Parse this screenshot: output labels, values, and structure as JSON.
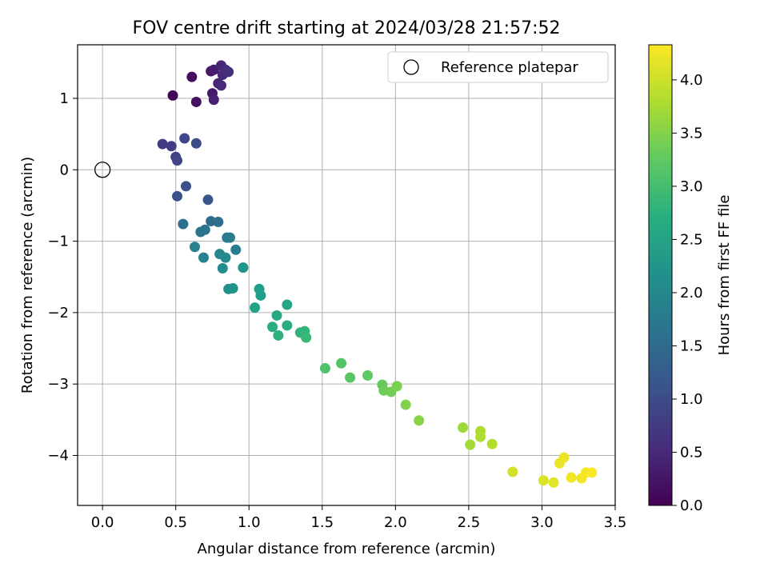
{
  "chart_data": {
    "type": "scatter",
    "title": "FOV centre drift starting at 2024/03/28 21:57:52",
    "xlabel": "Angular distance from reference (arcmin)",
    "ylabel": "Rotation from reference (arcmin)",
    "xlim": [
      -0.17,
      3.5
    ],
    "ylim": [
      -4.7,
      1.75
    ],
    "xticks": [
      0.0,
      0.5,
      1.0,
      1.5,
      2.0,
      2.5,
      3.0,
      3.5
    ],
    "xtick_labels": [
      "0.0",
      "0.5",
      "1.0",
      "1.5",
      "2.0",
      "2.5",
      "3.0",
      "3.5"
    ],
    "yticks": [
      -4,
      -3,
      -2,
      -1,
      0,
      1
    ],
    "ytick_labels": [
      "−4",
      "−3",
      "−2",
      "−1",
      "0",
      "1"
    ],
    "grid": true,
    "legend": {
      "placement": "top-right",
      "entries": [
        "Reference platepar"
      ]
    },
    "reference_point": {
      "x": 0.0,
      "y": 0.0
    },
    "colorbar": {
      "label": "Hours from first FF file",
      "colormap": "viridis",
      "range": [
        0.0,
        4.33
      ],
      "ticks": [
        0.0,
        0.5,
        1.0,
        1.5,
        2.0,
        2.5,
        3.0,
        3.5,
        4.0
      ],
      "tick_labels": [
        "0.0",
        "0.5",
        "1.0",
        "1.5",
        "2.0",
        "2.5",
        "3.0",
        "3.5",
        "4.0"
      ]
    },
    "series": [
      {
        "x": [
          0.48,
          0.61,
          0.64,
          0.74,
          0.75,
          0.76,
          0.76,
          0.79,
          0.81,
          0.81,
          0.82,
          0.84,
          0.86,
          0.41,
          0.47,
          0.5,
          0.51,
          0.56,
          0.64,
          0.57,
          0.51,
          0.72,
          0.74,
          0.79,
          0.55,
          0.67,
          0.7,
          0.85,
          0.87,
          0.91,
          0.63,
          0.69,
          0.8,
          0.84,
          0.82,
          0.86,
          0.89,
          0.96,
          1.07,
          1.08,
          1.04,
          1.26,
          1.19,
          1.16,
          1.26,
          1.2,
          1.35,
          1.38,
          1.39,
          1.52,
          1.63,
          1.69,
          1.81,
          1.91,
          1.92,
          1.97,
          2.01,
          2.07,
          2.16,
          2.46,
          2.51,
          2.58,
          2.58,
          2.66,
          2.8,
          3.01,
          3.08,
          3.12,
          3.15,
          3.2,
          3.27,
          3.3,
          3.34
        ],
        "y": [
          1.04,
          1.3,
          0.95,
          1.38,
          1.07,
          1.4,
          0.98,
          1.21,
          1.46,
          1.18,
          1.33,
          1.4,
          1.37,
          0.36,
          0.33,
          0.18,
          0.13,
          0.44,
          0.37,
          -0.23,
          -0.37,
          -0.42,
          -0.72,
          -0.73,
          -0.76,
          -0.87,
          -0.84,
          -0.95,
          -0.95,
          -1.12,
          -1.08,
          -1.23,
          -1.18,
          -1.23,
          -1.38,
          -1.67,
          -1.66,
          -1.37,
          -1.67,
          -1.76,
          -1.93,
          -1.89,
          -2.04,
          -2.2,
          -2.18,
          -2.32,
          -2.28,
          -2.26,
          -2.35,
          -2.78,
          -2.71,
          -2.91,
          -2.88,
          -3.01,
          -3.09,
          -3.11,
          -3.03,
          -3.29,
          -3.51,
          -3.61,
          -3.85,
          -3.66,
          -3.74,
          -3.84,
          -4.23,
          -4.35,
          -4.38,
          -4.11,
          -4.03,
          -4.31,
          -4.32,
          -4.24,
          -4.24
        ],
        "hours": [
          0.05,
          0.12,
          0.18,
          0.25,
          0.3,
          0.35,
          0.38,
          0.42,
          0.45,
          0.48,
          0.52,
          0.55,
          0.58,
          0.75,
          0.8,
          0.85,
          0.9,
          0.95,
          1.0,
          1.05,
          1.1,
          1.15,
          1.5,
          1.55,
          1.6,
          1.65,
          1.7,
          1.75,
          1.8,
          1.85,
          1.9,
          1.95,
          2.0,
          2.05,
          2.1,
          2.15,
          2.2,
          2.25,
          2.4,
          2.45,
          2.5,
          2.55,
          2.6,
          2.65,
          2.7,
          2.75,
          2.8,
          2.85,
          2.9,
          3.1,
          3.15,
          3.2,
          3.25,
          3.3,
          3.35,
          3.4,
          3.45,
          3.5,
          3.55,
          3.7,
          3.75,
          3.8,
          3.82,
          3.85,
          4.05,
          4.1,
          4.15,
          4.2,
          4.22,
          4.25,
          4.27,
          4.29,
          4.31
        ]
      }
    ]
  }
}
